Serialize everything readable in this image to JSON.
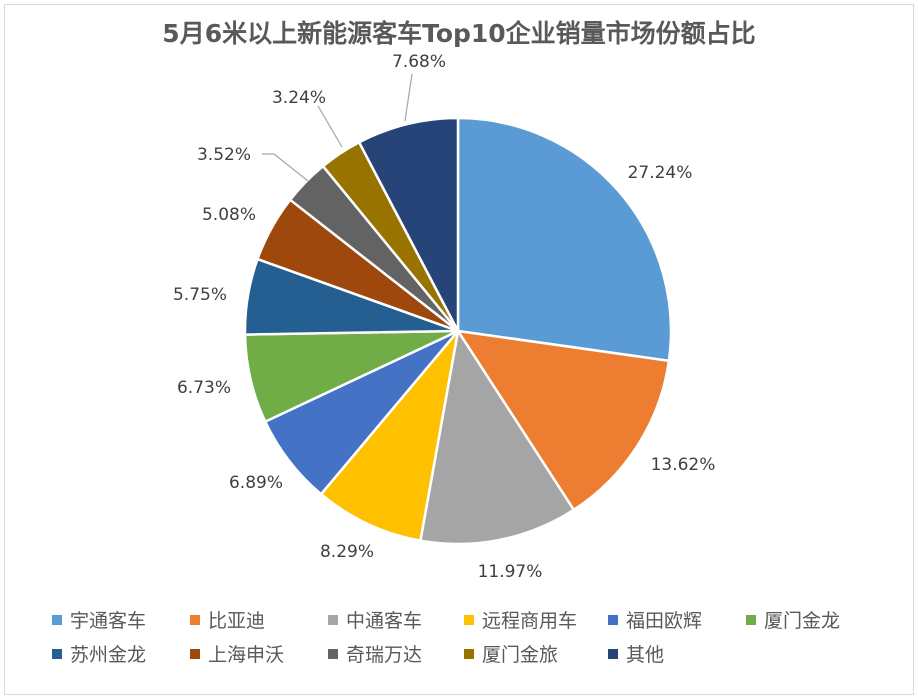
{
  "title": "5月6米以上新能源客车Top10企业销量市场份额占比",
  "chart_data": {
    "type": "pie",
    "title": "5月6米以上新能源客车Top10企业销量市场份额占比",
    "categories": [
      "宇通客车",
      "比亚迪",
      "中通客车",
      "远程商用车",
      "福田欧辉",
      "厦门金龙",
      "苏州金龙",
      "上海申沃",
      "奇瑞万达",
      "厦门金旅",
      "其他"
    ],
    "values": [
      27.24,
      13.62,
      11.97,
      8.29,
      6.89,
      6.73,
      5.75,
      5.08,
      3.52,
      3.24,
      7.68
    ],
    "labels": [
      "27.24%",
      "13.62%",
      "11.97%",
      "8.29%",
      "6.89%",
      "6.73%",
      "5.75%",
      "5.08%",
      "3.52%",
      "3.24%",
      "7.68%"
    ],
    "colors": [
      "#5b9bd5",
      "#ed7d31",
      "#a5a5a5",
      "#ffc000",
      "#4472c4",
      "#70ad47",
      "#255e91",
      "#9e480e",
      "#636363",
      "#997300",
      "#264478"
    ],
    "legend_position": "bottom",
    "start_angle": "12 o'clock, clockwise"
  }
}
